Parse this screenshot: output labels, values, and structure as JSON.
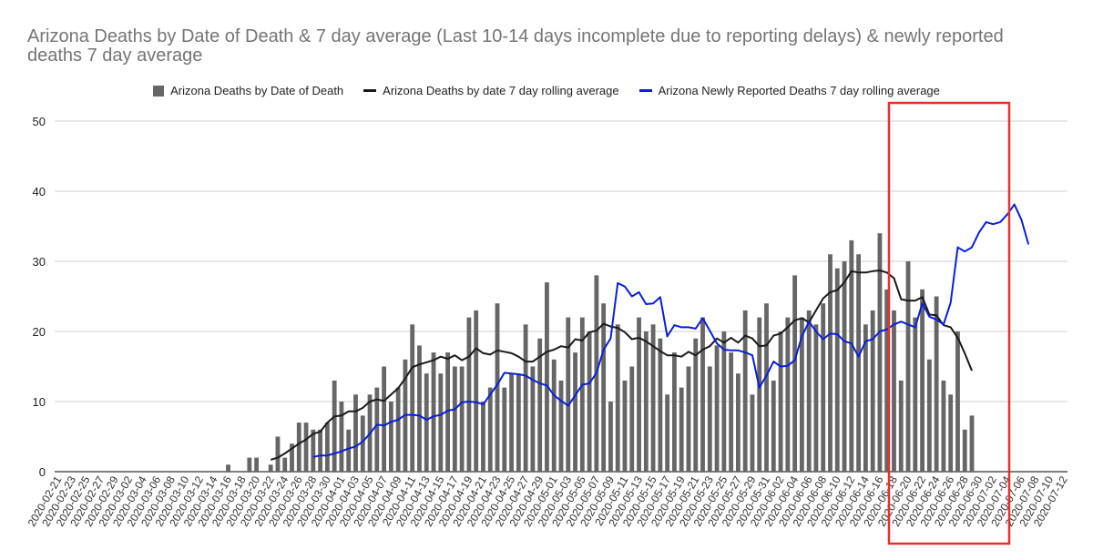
{
  "chart_data": {
    "type": "bar+line",
    "title": "Arizona Deaths by Date of Death & 7 day average (Last 10-14 days incomplete due to reporting delays) & newly reported deaths 7 day average",
    "xlabel": "",
    "ylabel": "",
    "ylim": [
      0,
      50
    ],
    "yticks": [
      0,
      10,
      20,
      30,
      40,
      50
    ],
    "grid": true,
    "legend_position": "top",
    "start_date": "2020-02-21",
    "xtick_labels": [
      "2020-02-21",
      "2020-02-23",
      "2020-02-25",
      "2020-02-27",
      "2020-02-29",
      "2020-03-02",
      "2020-03-04",
      "2020-03-06",
      "2020-03-08",
      "2020-03-10",
      "2020-03-12",
      "2020-03-14",
      "2020-03-16",
      "2020-03-18",
      "2020-03-20",
      "2020-03-22",
      "2020-03-24",
      "2020-03-26",
      "2020-03-28",
      "2020-03-30",
      "2020-04-01",
      "2020-04-03",
      "2020-04-05",
      "2020-04-07",
      "2020-04-09",
      "2020-04-11",
      "2020-04-13",
      "2020-04-15",
      "2020-04-17",
      "2020-04-19",
      "2020-04-21",
      "2020-04-23",
      "2020-04-25",
      "2020-04-27",
      "2020-04-29",
      "2020-05-01",
      "2020-05-03",
      "2020-05-05",
      "2020-05-07",
      "2020-05-09",
      "2020-05-11",
      "2020-05-13",
      "2020-05-15",
      "2020-05-17",
      "2020-05-19",
      "2020-05-21",
      "2020-05-23",
      "2020-05-25",
      "2020-05-27",
      "2020-05-29",
      "2020-05-31",
      "2020-06-02",
      "2020-06-04",
      "2020-06-06",
      "2020-06-08",
      "2020-06-10",
      "2020-06-12",
      "2020-06-14",
      "2020-06-16",
      "2020-06-18",
      "2020-06-20",
      "2020-06-22",
      "2020-06-24",
      "2020-06-26",
      "2020-06-28",
      "2020-06-30",
      "2020-07-02",
      "2020-07-04",
      "2020-07-06",
      "2020-07-08",
      "2020-07-10",
      "2020-07-12"
    ],
    "series": [
      {
        "name": "Arizona Deaths by Date of Death",
        "kind": "bar",
        "color": "#666666",
        "start_index": 24,
        "values": [
          1,
          0,
          0,
          2,
          2,
          0,
          1,
          5,
          2,
          4,
          7,
          7,
          6,
          6,
          7,
          13,
          10,
          6,
          11,
          8,
          11,
          12,
          15,
          10,
          12,
          16,
          21,
          18,
          14,
          17,
          14,
          17,
          15,
          15,
          22,
          23,
          10,
          12,
          24,
          12,
          14,
          14,
          21,
          15,
          19,
          27,
          16,
          13,
          22,
          17,
          22,
          20,
          28,
          24,
          10,
          21,
          13,
          15,
          22,
          20,
          21,
          19,
          11,
          17,
          12,
          15,
          19,
          22,
          15,
          18,
          20,
          17,
          14,
          23,
          11,
          22,
          24,
          13,
          20,
          22,
          28,
          22,
          23,
          21,
          24,
          31,
          29,
          30,
          33,
          31,
          21,
          23,
          34,
          26,
          23,
          13,
          30,
          22,
          26,
          16,
          25,
          13,
          11,
          20,
          6,
          8
        ]
      },
      {
        "name": "Arizona Deaths by date 7 day rolling average",
        "kind": "line",
        "color": "#1a1a1a",
        "start_index": 30,
        "values": [
          1.7,
          2.0,
          2.6,
          3.3,
          4.0,
          4.6,
          5.4,
          5.7,
          7.0,
          7.9,
          8.0,
          8.6,
          8.6,
          9.1,
          10.0,
          10.3,
          10.1,
          11.0,
          11.9,
          13.3,
          14.9,
          15.3,
          15.6,
          15.9,
          16.4,
          16.1,
          16.6,
          15.9,
          16.4,
          17.6,
          16.9,
          16.7,
          17.3,
          17.1,
          16.9,
          16.4,
          15.7,
          15.7,
          16.4,
          17.1,
          17.4,
          17.9,
          17.7,
          18.9,
          18.7,
          19.9,
          20.1,
          21.1,
          20.7,
          20.5,
          19.9,
          18.9,
          19.1,
          18.6,
          17.9,
          17.2,
          16.6,
          16.6,
          16.4,
          17.1,
          16.6,
          17.4,
          17.9,
          19.0,
          18.4,
          19.1,
          18.4,
          19.4,
          19.0,
          17.9,
          18.0,
          19.4,
          19.7,
          20.6,
          21.6,
          21.9,
          21.3,
          23.0,
          24.7,
          25.6,
          25.9,
          27.0,
          28.6,
          28.4,
          28.4,
          28.6,
          28.7,
          28.4,
          27.6,
          24.6,
          24.4,
          24.4,
          24.9,
          22.4,
          22.3,
          20.9,
          20.6,
          19.1,
          16.9,
          14.4
        ]
      },
      {
        "name": "Arizona Newly Reported Deaths 7 day rolling average",
        "kind": "line",
        "color": "#0a1fd8",
        "start_index": 36,
        "values": [
          2.1,
          2.3,
          2.3,
          2.6,
          2.9,
          3.3,
          3.6,
          4.3,
          5.4,
          6.7,
          6.6,
          7.1,
          7.4,
          8.1,
          8.1,
          8.0,
          7.4,
          7.9,
          8.1,
          8.7,
          8.9,
          9.9,
          10.0,
          9.9,
          9.6,
          11.0,
          12.4,
          14.1,
          14.0,
          13.9,
          13.7,
          13.1,
          12.6,
          12.3,
          10.9,
          10.1,
          9.4,
          10.9,
          12.4,
          12.6,
          14.1,
          17.4,
          19.0,
          26.9,
          26.4,
          25.0,
          25.6,
          23.9,
          24.0,
          24.9,
          19.3,
          20.9,
          20.6,
          20.6,
          20.4,
          21.9,
          20.1,
          18.3,
          17.4,
          17.3,
          17.3,
          17.0,
          16.6,
          12.0,
          13.7,
          15.7,
          15.0,
          15.1,
          15.9,
          19.3,
          21.4,
          20.0,
          18.9,
          19.7,
          19.6,
          18.6,
          18.3,
          16.4,
          18.6,
          18.9,
          20.0,
          20.3,
          21.0,
          21.4,
          21.0,
          20.6,
          24.0,
          22.1,
          21.7,
          21.0,
          24.1,
          32.0,
          31.4,
          32.0,
          34.1,
          35.6,
          35.3,
          35.6,
          36.7,
          38.1,
          35.9,
          32.4
        ]
      }
    ]
  },
  "annotations": {
    "highlight_box_color": "#e8312b"
  }
}
